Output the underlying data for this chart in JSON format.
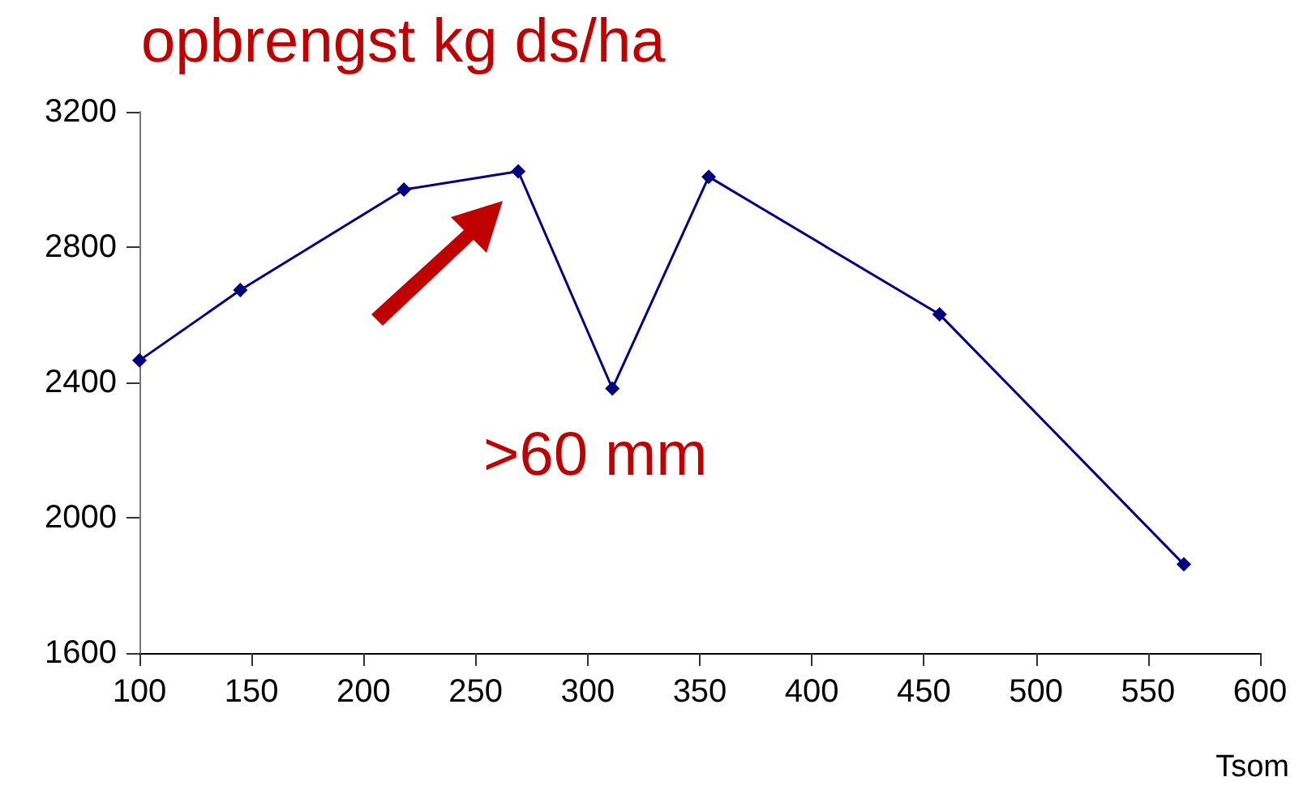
{
  "chart_data": {
    "type": "line",
    "title": "opbrengst kg ds/ha",
    "xlabel": "Tsom",
    "x": [
      100,
      145,
      218,
      269,
      311,
      354,
      457,
      566
    ],
    "series": [
      {
        "color": "#000080",
        "values": [
          2465,
          2673,
          2970,
          3024,
          2382,
          3008,
          2601,
          1862
        ]
      }
    ],
    "xlim": [
      100,
      600
    ],
    "xticks": [
      100,
      150,
      200,
      250,
      300,
      350,
      400,
      450,
      500,
      550,
      600
    ],
    "ylim": [
      1600,
      3200
    ],
    "yticks": [
      1600,
      2000,
      2400,
      2800,
      3200
    ],
    "grid": false,
    "marker": "diamond",
    "line_style": "solid",
    "annotations": [
      ">60 mm"
    ]
  }
}
